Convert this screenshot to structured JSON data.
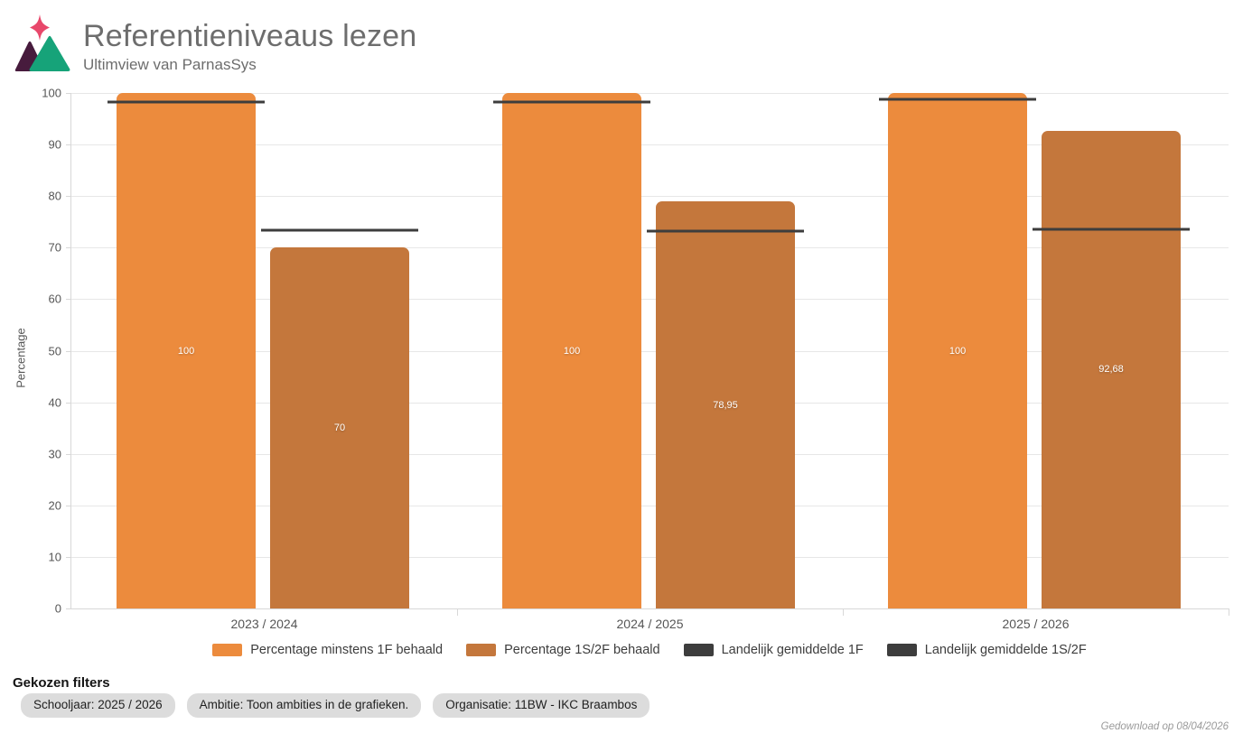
{
  "header": {
    "title": "Referentieniveaus lezen",
    "subtitle": "Ultimview van ParnasSys"
  },
  "chart_data": {
    "type": "bar",
    "title": "Referentieniveaus lezen",
    "categories": [
      "2023 / 2024",
      "2024 / 2025",
      "2025 / 2026"
    ],
    "series": [
      {
        "name": "Percentage minstens 1F behaald",
        "color": "#ec8b3d",
        "values": [
          100,
          100,
          100
        ],
        "labels": [
          "100",
          "100",
          "100"
        ]
      },
      {
        "name": "Percentage 1S/2F behaald",
        "color": "#c4773c",
        "values": [
          70,
          78.95,
          92.68
        ],
        "labels": [
          "70",
          "78,95",
          "92,68"
        ]
      }
    ],
    "reference_lines": [
      {
        "name": "Landelijk gemiddelde 1F",
        "color": "#3d3d3d",
        "series_index": 0,
        "values": [
          98.3,
          98.3,
          98.8
        ]
      },
      {
        "name": "Landelijk gemiddelde 1S/2F",
        "color": "#3d3d3d",
        "series_index": 1,
        "values": [
          73.3,
          73.2,
          73.5
        ]
      }
    ],
    "xlabel": "",
    "ylabel": "Percentage",
    "ylim": [
      0,
      100
    ],
    "ytick_step": 10,
    "grid": true,
    "legend_position": "bottom",
    "value_labels": "inside-middle"
  },
  "filters": {
    "heading": "Gekozen filters",
    "chips": [
      "Schooljaar: 2025 / 2026",
      "Ambitie: Toon ambities in de grafieken.",
      "Organisatie: 11BW - IKC Braambos"
    ]
  },
  "footer": {
    "downloaded_text": "Gedownload op 08/04/2026"
  },
  "logo_colors": {
    "sparkle": "#e8486b",
    "left_mountain": "#471b3d",
    "right_mountain": "#16a379"
  }
}
